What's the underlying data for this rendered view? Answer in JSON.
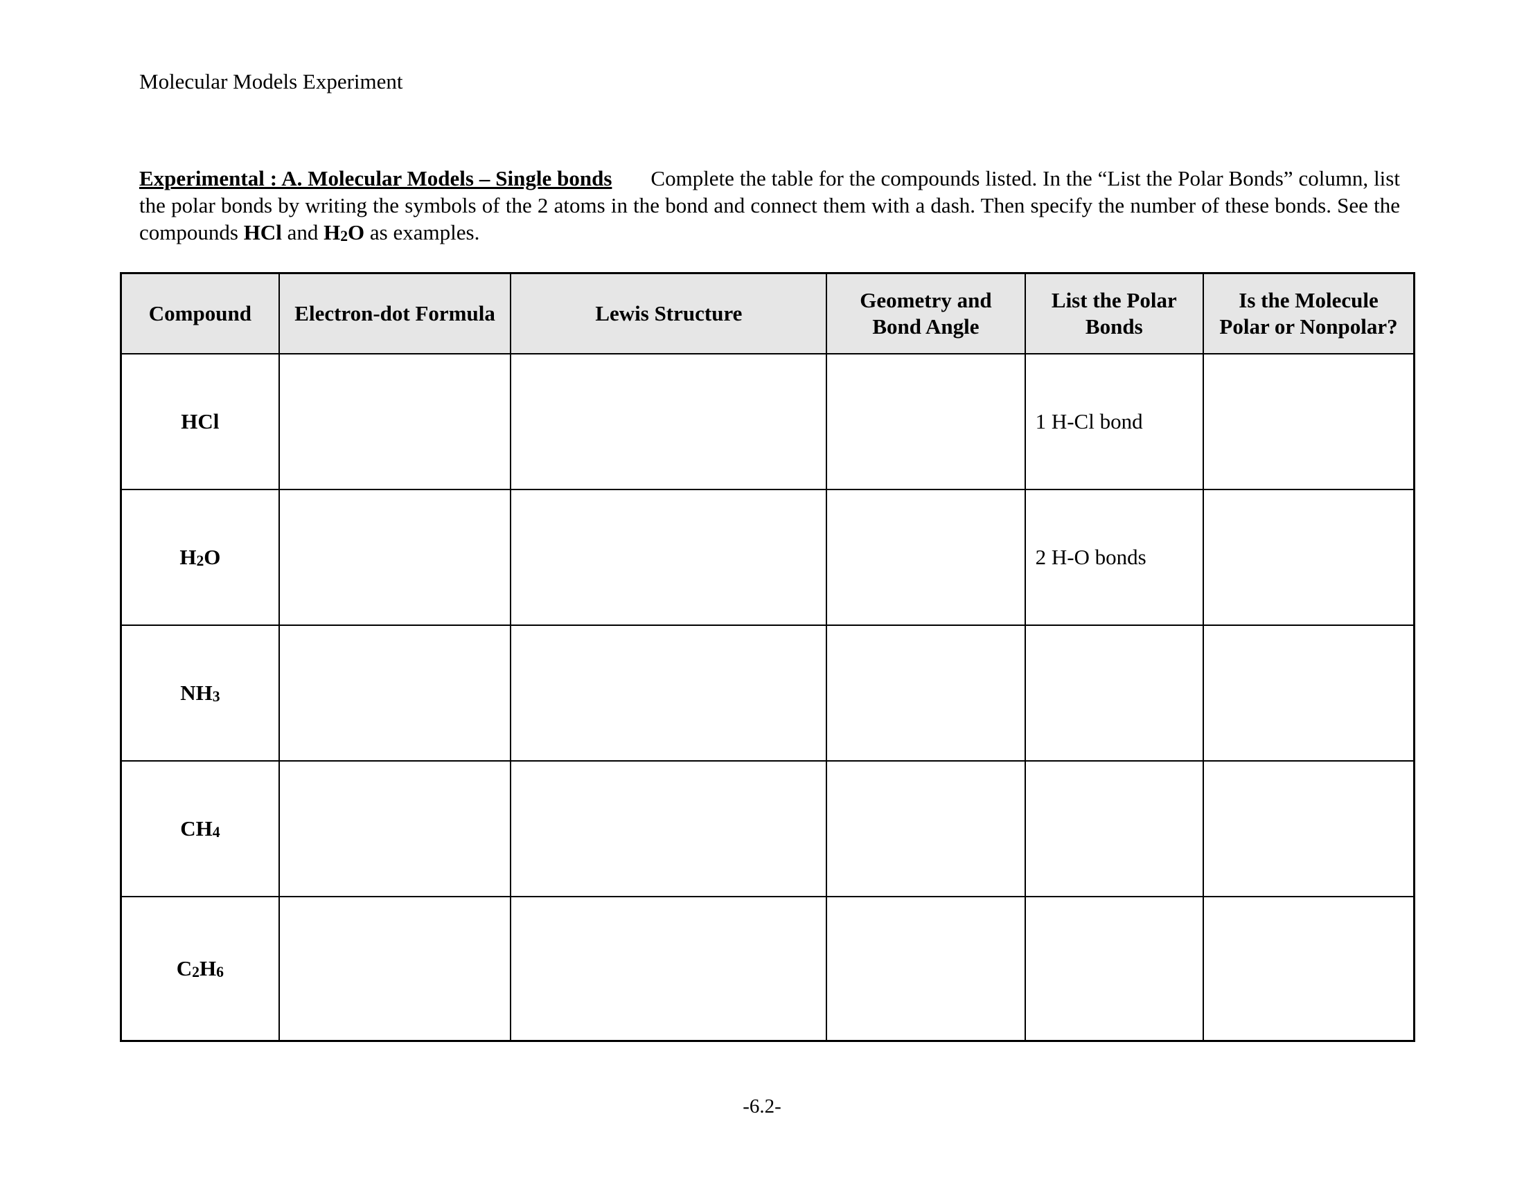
{
  "document": {
    "title": "Molecular Models Experiment",
    "section_heading": "Experimental :  A. Molecular Models – Single bonds",
    "instructions_part1": "Complete the table for the compounds listed. In the “List the Polar Bonds” column, list the polar bonds by writing the symbols of the 2 atoms in the bond and connect them with a dash. Then specify the number of these bonds. See the compounds ",
    "example1": "HCl",
    "instructions_and": " and ",
    "example2_main": "H",
    "example2_sub": "2",
    "example2_end": "O",
    "instructions_end": " as examples.",
    "page_number": "-6.2-"
  },
  "table": {
    "headers": [
      "Compound",
      "Electron-dot Formula",
      "Lewis Structure",
      "Geometry and Bond Angle",
      "List the Polar Bonds",
      "Is the Molecule Polar or Nonpolar?"
    ],
    "rows": [
      {
        "compound": [
          {
            "t": "HCl"
          }
        ],
        "polar_bonds": "1 H-Cl bond"
      },
      {
        "compound": [
          {
            "t": "H"
          },
          {
            "s": "2"
          },
          {
            "t": "O"
          }
        ],
        "polar_bonds": "2 H-O bonds"
      },
      {
        "compound": [
          {
            "t": "NH"
          },
          {
            "s": "3"
          }
        ],
        "polar_bonds": ""
      },
      {
        "compound": [
          {
            "t": "CH"
          },
          {
            "s": "4"
          }
        ],
        "polar_bonds": ""
      },
      {
        "compound": [
          {
            "t": "C"
          },
          {
            "s": "2"
          },
          {
            "t": "H"
          },
          {
            "s": "6"
          }
        ],
        "polar_bonds": ""
      }
    ]
  }
}
